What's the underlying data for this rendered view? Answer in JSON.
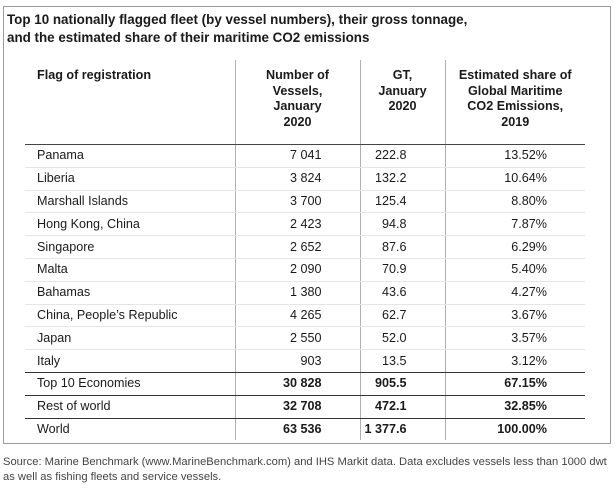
{
  "title": {
    "line1": "Top 10 nationally flagged fleet (by vessel numbers), their gross tonnage,",
    "line2": "and the estimated share of their maritime CO2 emissions"
  },
  "headers": {
    "flag": "Flag of registration",
    "vessels": [
      "Number of",
      "Vessels,",
      "January",
      "2020"
    ],
    "gt": [
      "GT,",
      "January",
      "2020"
    ],
    "share": [
      "Estimated share of",
      "Global Maritime",
      "CO2 Emissions,",
      "2019"
    ]
  },
  "rows": [
    {
      "flag": "Panama",
      "vessels": "7 041",
      "gt": "222.8",
      "share": "13.52%"
    },
    {
      "flag": "Liberia",
      "vessels": "3 824",
      "gt": "132.2",
      "share": "10.64%"
    },
    {
      "flag": "Marshall Islands",
      "vessels": "3 700",
      "gt": "125.4",
      "share": "8.80%"
    },
    {
      "flag": "Hong Kong, China",
      "vessels": "2 423",
      "gt": "94.8",
      "share": "7.87%"
    },
    {
      "flag": "Singapore",
      "vessels": "2 652",
      "gt": "87.6",
      "share": "6.29%"
    },
    {
      "flag": "Malta",
      "vessels": "2 090",
      "gt": "70.9",
      "share": "5.40%"
    },
    {
      "flag": "Bahamas",
      "vessels": "1 380",
      "gt": "43.6",
      "share": "4.27%"
    },
    {
      "flag": "China, People’s Republic",
      "vessels": "4 265",
      "gt": "62.7",
      "share": "3.67%"
    },
    {
      "flag": "Japan",
      "vessels": "2 550",
      "gt": "52.0",
      "share": "3.57%"
    },
    {
      "flag": "Italy",
      "vessels": "903",
      "gt": "13.5",
      "share": "3.12%"
    }
  ],
  "summary": [
    {
      "flag": "Top 10 Economies",
      "vessels": "30 828",
      "gt": "905.5",
      "share": "67.15%"
    },
    {
      "flag": "Rest of world",
      "vessels": "32 708",
      "gt": "472.1",
      "share": "32.85%"
    },
    {
      "flag": "World",
      "vessels": "63 536",
      "gt": "1 377.6",
      "share": "100.00%"
    }
  ],
  "source": "Source: Marine Benchmark (www.MarineBenchmark.com) and IHS Markit data. Data excludes vessels less than 1000 dwt as well as fishing fleets and service vessels."
}
